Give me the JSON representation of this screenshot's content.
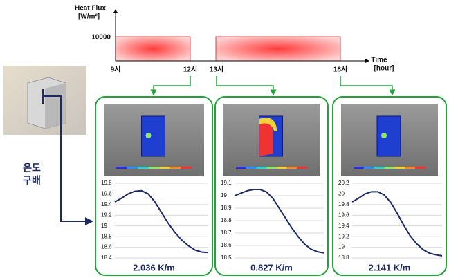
{
  "timeline": {
    "y_label": [
      "Heat Flux",
      "[W/m²]"
    ],
    "y_tick": 10000,
    "x_label": [
      "Time",
      "[hour]"
    ],
    "x_ticks": [
      "9시",
      "12시",
      "13시",
      "18시"
    ]
  },
  "side_label": [
    "온도",
    "구배"
  ],
  "panels": [
    {
      "ylim": [
        18.4,
        19.8
      ],
      "yticks": [
        18.4,
        18.6,
        18.8,
        19,
        19.2,
        19.4,
        19.6,
        19.8
      ],
      "values": [
        19.45,
        19.52,
        19.6,
        19.65,
        19.66,
        19.6,
        19.45,
        19.25,
        19.05,
        18.88,
        18.74,
        18.63,
        18.55,
        18.51,
        18.5
      ],
      "gradient": "2.036 K/m"
    },
    {
      "ylim": [
        18.5,
        19.1
      ],
      "yticks": [
        18.5,
        18.6,
        18.7,
        18.8,
        18.9,
        19,
        19.1
      ],
      "values": [
        19.0,
        19.02,
        19.04,
        19.05,
        19.05,
        19.03,
        18.98,
        18.9,
        18.82,
        18.74,
        18.67,
        18.61,
        18.57,
        18.55,
        18.54
      ],
      "gradient": "0.827 K/m"
    },
    {
      "ylim": [
        18.8,
        20.2
      ],
      "yticks": [
        18.8,
        19,
        19.2,
        19.4,
        19.6,
        19.8,
        20,
        20.2
      ],
      "values": [
        19.85,
        19.92,
        20.0,
        20.04,
        20.04,
        19.98,
        19.84,
        19.64,
        19.42,
        19.22,
        19.07,
        18.96,
        18.89,
        18.86,
        18.84
      ],
      "gradient": "2.141 K/m"
    }
  ]
}
